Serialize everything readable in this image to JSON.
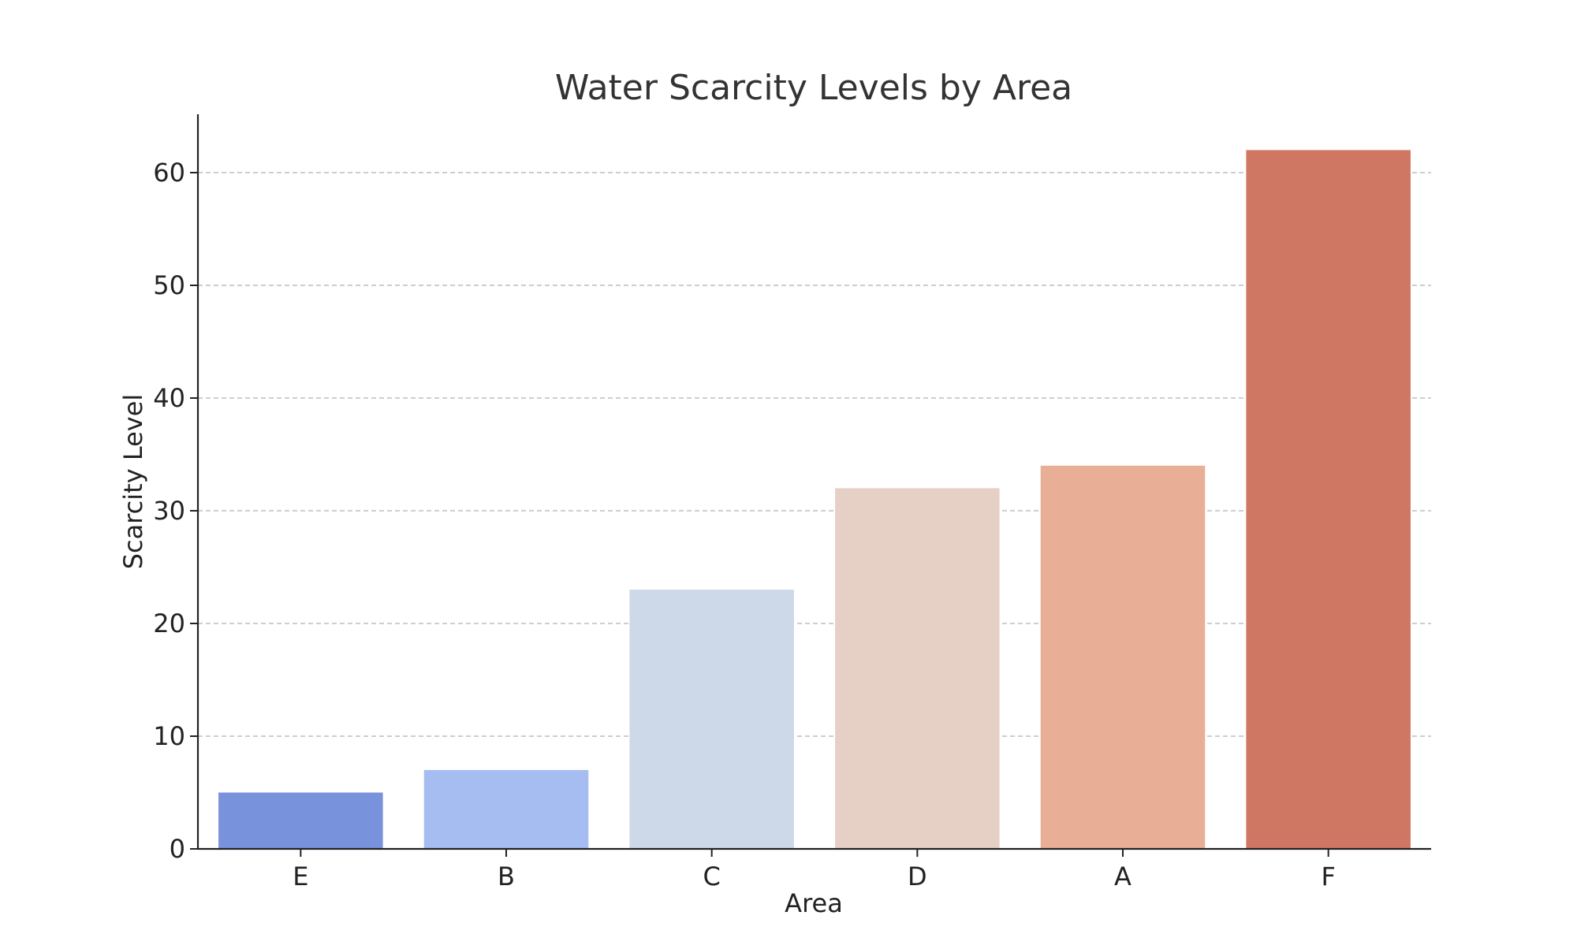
{
  "chart_data": {
    "type": "bar",
    "title": "Water Scarcity Levels by Area",
    "xlabel": "Area",
    "ylabel": "Scarcity Level",
    "categories": [
      "E",
      "B",
      "C",
      "D",
      "A",
      "F"
    ],
    "values": [
      5,
      7,
      23,
      32,
      34,
      62
    ],
    "colors": [
      "#7892dc",
      "#a5bdf1",
      "#cdd8e8",
      "#e6d0c5",
      "#e9ae96",
      "#d07763"
    ],
    "ylim": [
      0,
      65
    ],
    "yticks": [
      0,
      10,
      20,
      30,
      40,
      50,
      60
    ],
    "grid": "y-dashed",
    "legend": "none"
  }
}
